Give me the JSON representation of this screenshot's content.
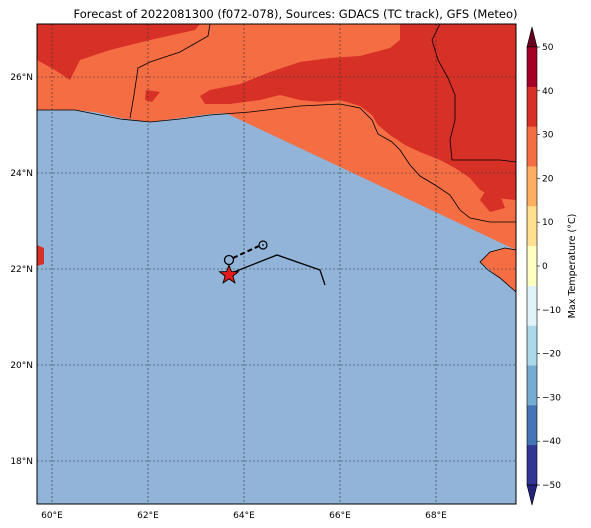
{
  "title": "Forecast of 2022081300 (f072-078), Sources: GDACS (TC track), GFS (Meteo)",
  "map": {
    "lat_ticks": [
      "26°N",
      "24°N",
      "22°N",
      "20°N",
      "18°N"
    ],
    "lon_ticks": [
      "60°E",
      "62°E",
      "64°E",
      "66°E",
      "68°E"
    ],
    "colors": {
      "sea": "#91b4d8",
      "land_hot": "#d73027",
      "land_warm": "#f46d43",
      "border": "#000000",
      "storm_marker": "#e41a1c"
    },
    "track_icons": [
      "storm-star-icon",
      "tc-circle-icon"
    ]
  },
  "colorbar": {
    "label": "Max Temperature (°C)",
    "ticks": [
      "50",
      "40",
      "30",
      "20",
      "10",
      "0",
      "−10",
      "−20",
      "−30",
      "−40",
      "−50"
    ],
    "colors": [
      "#67001f",
      "#a50026",
      "#d73027",
      "#f46d43",
      "#fdae61",
      "#fee090",
      "#ffffbf",
      "#e0f3f8",
      "#abd9e9",
      "#74add1",
      "#4575b4",
      "#313695",
      "#23237e"
    ]
  }
}
